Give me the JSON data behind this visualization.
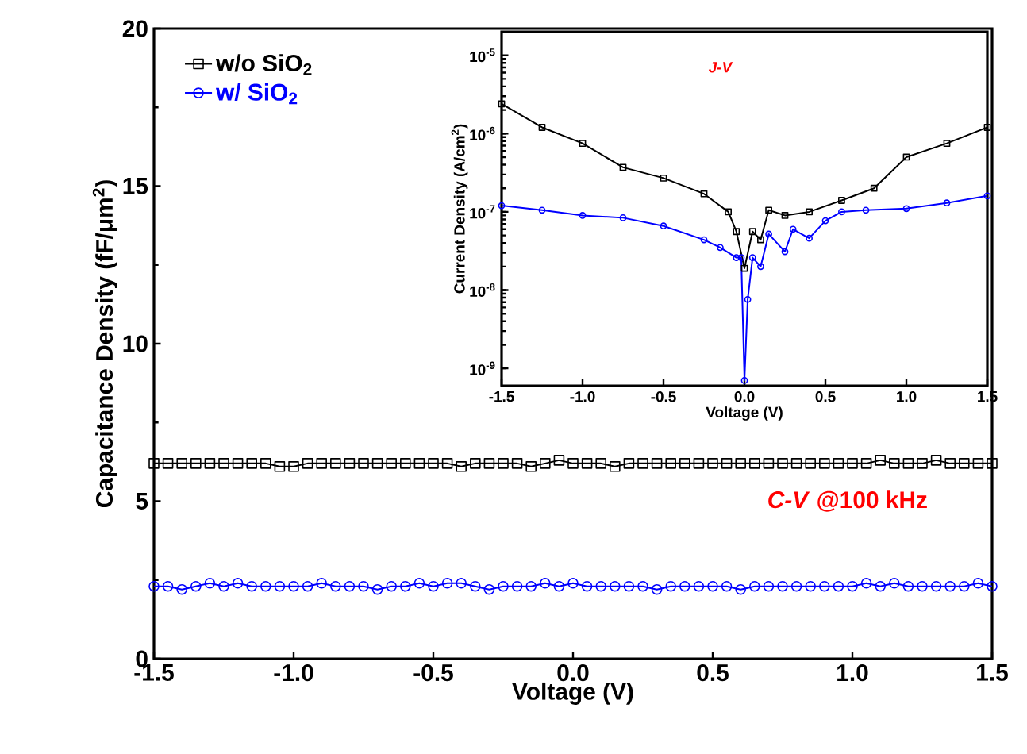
{
  "chart_data": [
    {
      "type": "line",
      "xlabel": "Voltage (V)",
      "ylabel": "Capacitance Density (fF/μm$^{2}$)",
      "xlim": [
        -1.5,
        1.5
      ],
      "ylim": [
        0,
        20
      ],
      "xticks": [
        {
          "value": -1.5,
          "label": "-1.5"
        },
        {
          "value": -1,
          "label": "-1.0"
        },
        {
          "value": -0.5,
          "label": "-0.5"
        },
        {
          "value": 0,
          "label": "0.0"
        },
        {
          "value": 0.5,
          "label": "0.5"
        },
        {
          "value": 1,
          "label": "1.0"
        },
        {
          "value": 1.5,
          "label": "1.5"
        }
      ],
      "yticks": [
        0,
        5,
        10,
        15,
        20
      ],
      "legend": "top left",
      "grid": false,
      "annotations": [
        "*C-V* @100 kHz"
      ],
      "x": [
        -1.5,
        -1.45,
        -1.4,
        -1.35,
        -1.3,
        -1.25,
        -1.2,
        -1.15,
        -1.1,
        -1.05,
        -1.0,
        -0.95,
        -0.9,
        -0.85,
        -0.8,
        -0.75,
        -0.7,
        -0.65,
        -0.6,
        -0.55,
        -0.5,
        -0.45,
        -0.4,
        -0.35,
        -0.3,
        -0.25,
        -0.2,
        -0.15,
        -0.1,
        -0.05,
        0.0,
        0.05,
        0.1,
        0.15,
        0.2,
        0.25,
        0.3,
        0.35,
        0.4,
        0.45,
        0.5,
        0.55,
        0.6,
        0.65,
        0.7,
        0.75,
        0.8,
        0.85,
        0.9,
        0.95,
        1.0,
        1.05,
        1.1,
        1.15,
        1.2,
        1.25,
        1.3,
        1.35,
        1.4,
        1.45,
        1.5
      ],
      "series": [
        {
          "name": "w/o SiO$_{2}$",
          "color": "#000000",
          "marker": "square",
          "values": [
            6.2,
            6.2,
            6.2,
            6.2,
            6.2,
            6.2,
            6.2,
            6.2,
            6.2,
            6.1,
            6.1,
            6.2,
            6.2,
            6.2,
            6.2,
            6.2,
            6.2,
            6.2,
            6.2,
            6.2,
            6.2,
            6.2,
            6.1,
            6.2,
            6.2,
            6.2,
            6.2,
            6.1,
            6.2,
            6.3,
            6.2,
            6.2,
            6.2,
            6.1,
            6.2,
            6.2,
            6.2,
            6.2,
            6.2,
            6.2,
            6.2,
            6.2,
            6.2,
            6.2,
            6.2,
            6.2,
            6.2,
            6.2,
            6.2,
            6.2,
            6.2,
            6.2,
            6.3,
            6.2,
            6.2,
            6.2,
            6.3,
            6.2,
            6.2,
            6.2,
            6.2
          ]
        },
        {
          "name": "w/ SiO$_{2}$",
          "color": "#0000ff",
          "marker": "circle",
          "values": [
            2.3,
            2.3,
            2.2,
            2.3,
            2.4,
            2.3,
            2.4,
            2.3,
            2.3,
            2.3,
            2.3,
            2.3,
            2.4,
            2.3,
            2.3,
            2.3,
            2.2,
            2.3,
            2.3,
            2.4,
            2.3,
            2.4,
            2.4,
            2.3,
            2.2,
            2.3,
            2.3,
            2.3,
            2.4,
            2.3,
            2.4,
            2.3,
            2.3,
            2.3,
            2.3,
            2.3,
            2.2,
            2.3,
            2.3,
            2.3,
            2.3,
            2.3,
            2.2,
            2.3,
            2.3,
            2.3,
            2.3,
            2.3,
            2.3,
            2.3,
            2.3,
            2.4,
            2.3,
            2.4,
            2.3,
            2.3,
            2.3,
            2.3,
            2.3,
            2.4,
            2.3
          ]
        }
      ]
    },
    {
      "type": "line",
      "xlabel": "Voltage (V)",
      "ylabel": "Current Density (A/cm$^{2}$)",
      "log": "y",
      "xlim": [
        -1.5,
        1.5
      ],
      "ylim": [
        6e-10,
        2e-05
      ],
      "xticks": [
        {
          "value": -1.5,
          "label": "-1.5"
        },
        {
          "value": -1,
          "label": "-1.0"
        },
        {
          "value": -0.5,
          "label": "-0.5"
        },
        {
          "value": 0,
          "label": "0.0"
        },
        {
          "value": 0.5,
          "label": "0.5"
        },
        {
          "value": 1,
          "label": "1.0"
        },
        {
          "value": 1.5,
          "label": "1.5"
        }
      ],
      "yticks": [
        {
          "value": 1e-09,
          "label": "10$^{-9}$"
        },
        {
          "value": 1e-08,
          "label": "10$^{-8}$"
        },
        {
          "value": 1e-07,
          "label": "10$^{-7}$"
        },
        {
          "value": 1e-06,
          "label": "10$^{-6}$"
        },
        {
          "value": 1e-05,
          "label": "10$^{-5}$"
        }
      ],
      "grid": false,
      "annotations": [
        "J-V"
      ],
      "series": [
        {
          "color": "#000000",
          "marker": "square",
          "x": [
            -1.5,
            -1.25,
            -1.0,
            -0.75,
            -0.5,
            -0.25,
            -0.1,
            -0.05,
            0.0,
            0.05,
            0.1,
            0.15,
            0.25,
            0.4,
            0.6,
            0.8,
            1.0,
            1.25,
            1.5
          ],
          "values": [
            2.4e-06,
            1.2e-06,
            7.5e-07,
            3.7e-07,
            2.7e-07,
            1.7e-07,
            1e-07,
            5.6e-08,
            1.9e-08,
            5.6e-08,
            4.4e-08,
            1.05e-07,
            9e-08,
            1e-07,
            1.4e-07,
            2e-07,
            5e-07,
            7.5e-07,
            1.2e-06
          ]
        },
        {
          "color": "#0000ff",
          "marker": "circle",
          "x": [
            -1.5,
            -1.25,
            -1.0,
            -0.75,
            -0.5,
            -0.25,
            -0.15,
            -0.05,
            -0.02,
            0.0,
            0.02,
            0.05,
            0.1,
            0.15,
            0.25,
            0.3,
            0.4,
            0.5,
            0.6,
            0.75,
            1.0,
            1.25,
            1.5
          ],
          "values": [
            1.2e-07,
            1.05e-07,
            9e-08,
            8.4e-08,
            6.6e-08,
            4.4e-08,
            3.5e-08,
            2.6e-08,
            2.6e-08,
            7e-10,
            7.6e-09,
            2.6e-08,
            2e-08,
            5.2e-08,
            3.1e-08,
            6e-08,
            4.6e-08,
            7.7e-08,
            1e-07,
            1.05e-07,
            1.1e-07,
            1.3e-07,
            1.6e-07
          ]
        }
      ]
    }
  ]
}
